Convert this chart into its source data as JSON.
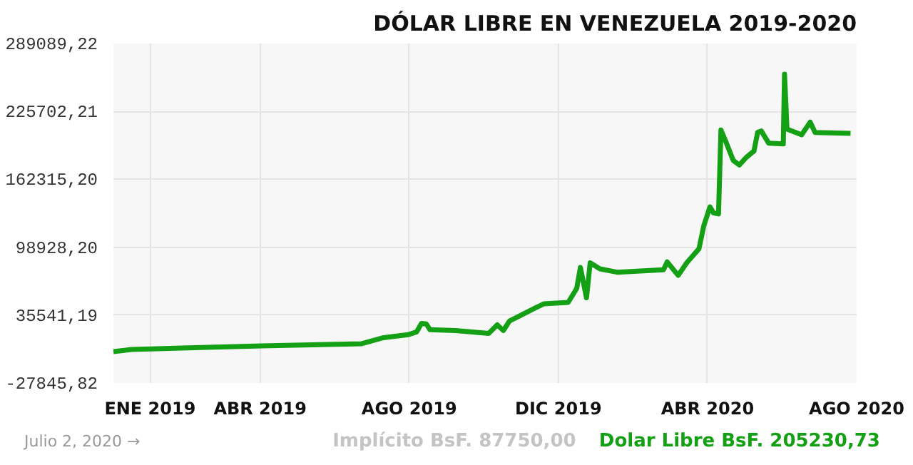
{
  "chart_data": {
    "type": "line",
    "title": "DÓLAR LIBRE EN VENEZUELA 2019-2020",
    "x": [
      "2018-12-02",
      "2018-12-17",
      "2019-04-02",
      "2019-06-23",
      "2019-07-11",
      "2019-07-31",
      "2019-08-07",
      "2019-08-11",
      "2019-08-15",
      "2019-08-18",
      "2019-09-08",
      "2019-10-05",
      "2019-10-12",
      "2019-10-17",
      "2019-10-22",
      "2019-11-12",
      "2019-11-19",
      "2019-12-09",
      "2019-12-16",
      "2019-12-19",
      "2019-12-24",
      "2019-12-27",
      "2020-01-04",
      "2020-01-18",
      "2020-02-25",
      "2020-02-28",
      "2020-03-08",
      "2020-03-15",
      "2020-03-25",
      "2020-03-29",
      "2020-04-03",
      "2020-04-06",
      "2020-04-10",
      "2020-04-12",
      "2020-04-16",
      "2020-04-22",
      "2020-04-27",
      "2020-05-03",
      "2020-05-09",
      "2020-05-12",
      "2020-05-15",
      "2020-05-21",
      "2020-06-02",
      "2020-06-03",
      "2020-06-05",
      "2020-06-17",
      "2020-06-24",
      "2020-06-28",
      "2020-07-27"
    ],
    "series": [
      {
        "color": "#14a014",
        "values": [
          1400,
          3500,
          6700,
          8800,
          14500,
          17200,
          19800,
          27700,
          27200,
          21900,
          21100,
          18500,
          26400,
          21100,
          30000,
          42100,
          46000,
          47400,
          60400,
          80000,
          51700,
          84300,
          78700,
          75600,
          77800,
          85200,
          72600,
          84300,
          97400,
          119100,
          136500,
          130900,
          130000,
          208300,
          197400,
          180000,
          175700,
          183100,
          188700,
          206100,
          207400,
          196100,
          195300,
          260500,
          209200,
          203900,
          215700,
          206100,
          205231
        ]
      }
    ],
    "xlim": [
      "2018-12-02",
      "2020-08-01"
    ],
    "xticks": [
      {
        "value": "2019-01-01",
        "label": "ENE 2019"
      },
      {
        "value": "2019-04-01",
        "label": "ABR 2019"
      },
      {
        "value": "2019-08-01",
        "label": "AGO 2019"
      },
      {
        "value": "2019-12-01",
        "label": "DIC 2019"
      },
      {
        "value": "2020-04-01",
        "label": "ABR 2020"
      },
      {
        "value": "2020-08-01",
        "label": "AGO 2020"
      }
    ],
    "ylim": [
      -27845.82,
      289089.22
    ],
    "yticks": [
      {
        "value": -27845.82,
        "label": "-27845,82"
      },
      {
        "value": 35541.19,
        "label": "35541,19"
      },
      {
        "value": 98928.2,
        "label": "98928,20"
      },
      {
        "value": 162315.2,
        "label": "162315,20"
      },
      {
        "value": 225702.21,
        "label": "225702,21"
      },
      {
        "value": 289089.22,
        "label": "289089,22"
      }
    ],
    "grid": true,
    "marker": "none",
    "line_style": "solid",
    "annotations": [
      "Julio 2, 2020 →",
      "Implícito BsF. 87750,00",
      "Dolar Libre BsF. 205230,73"
    ]
  }
}
